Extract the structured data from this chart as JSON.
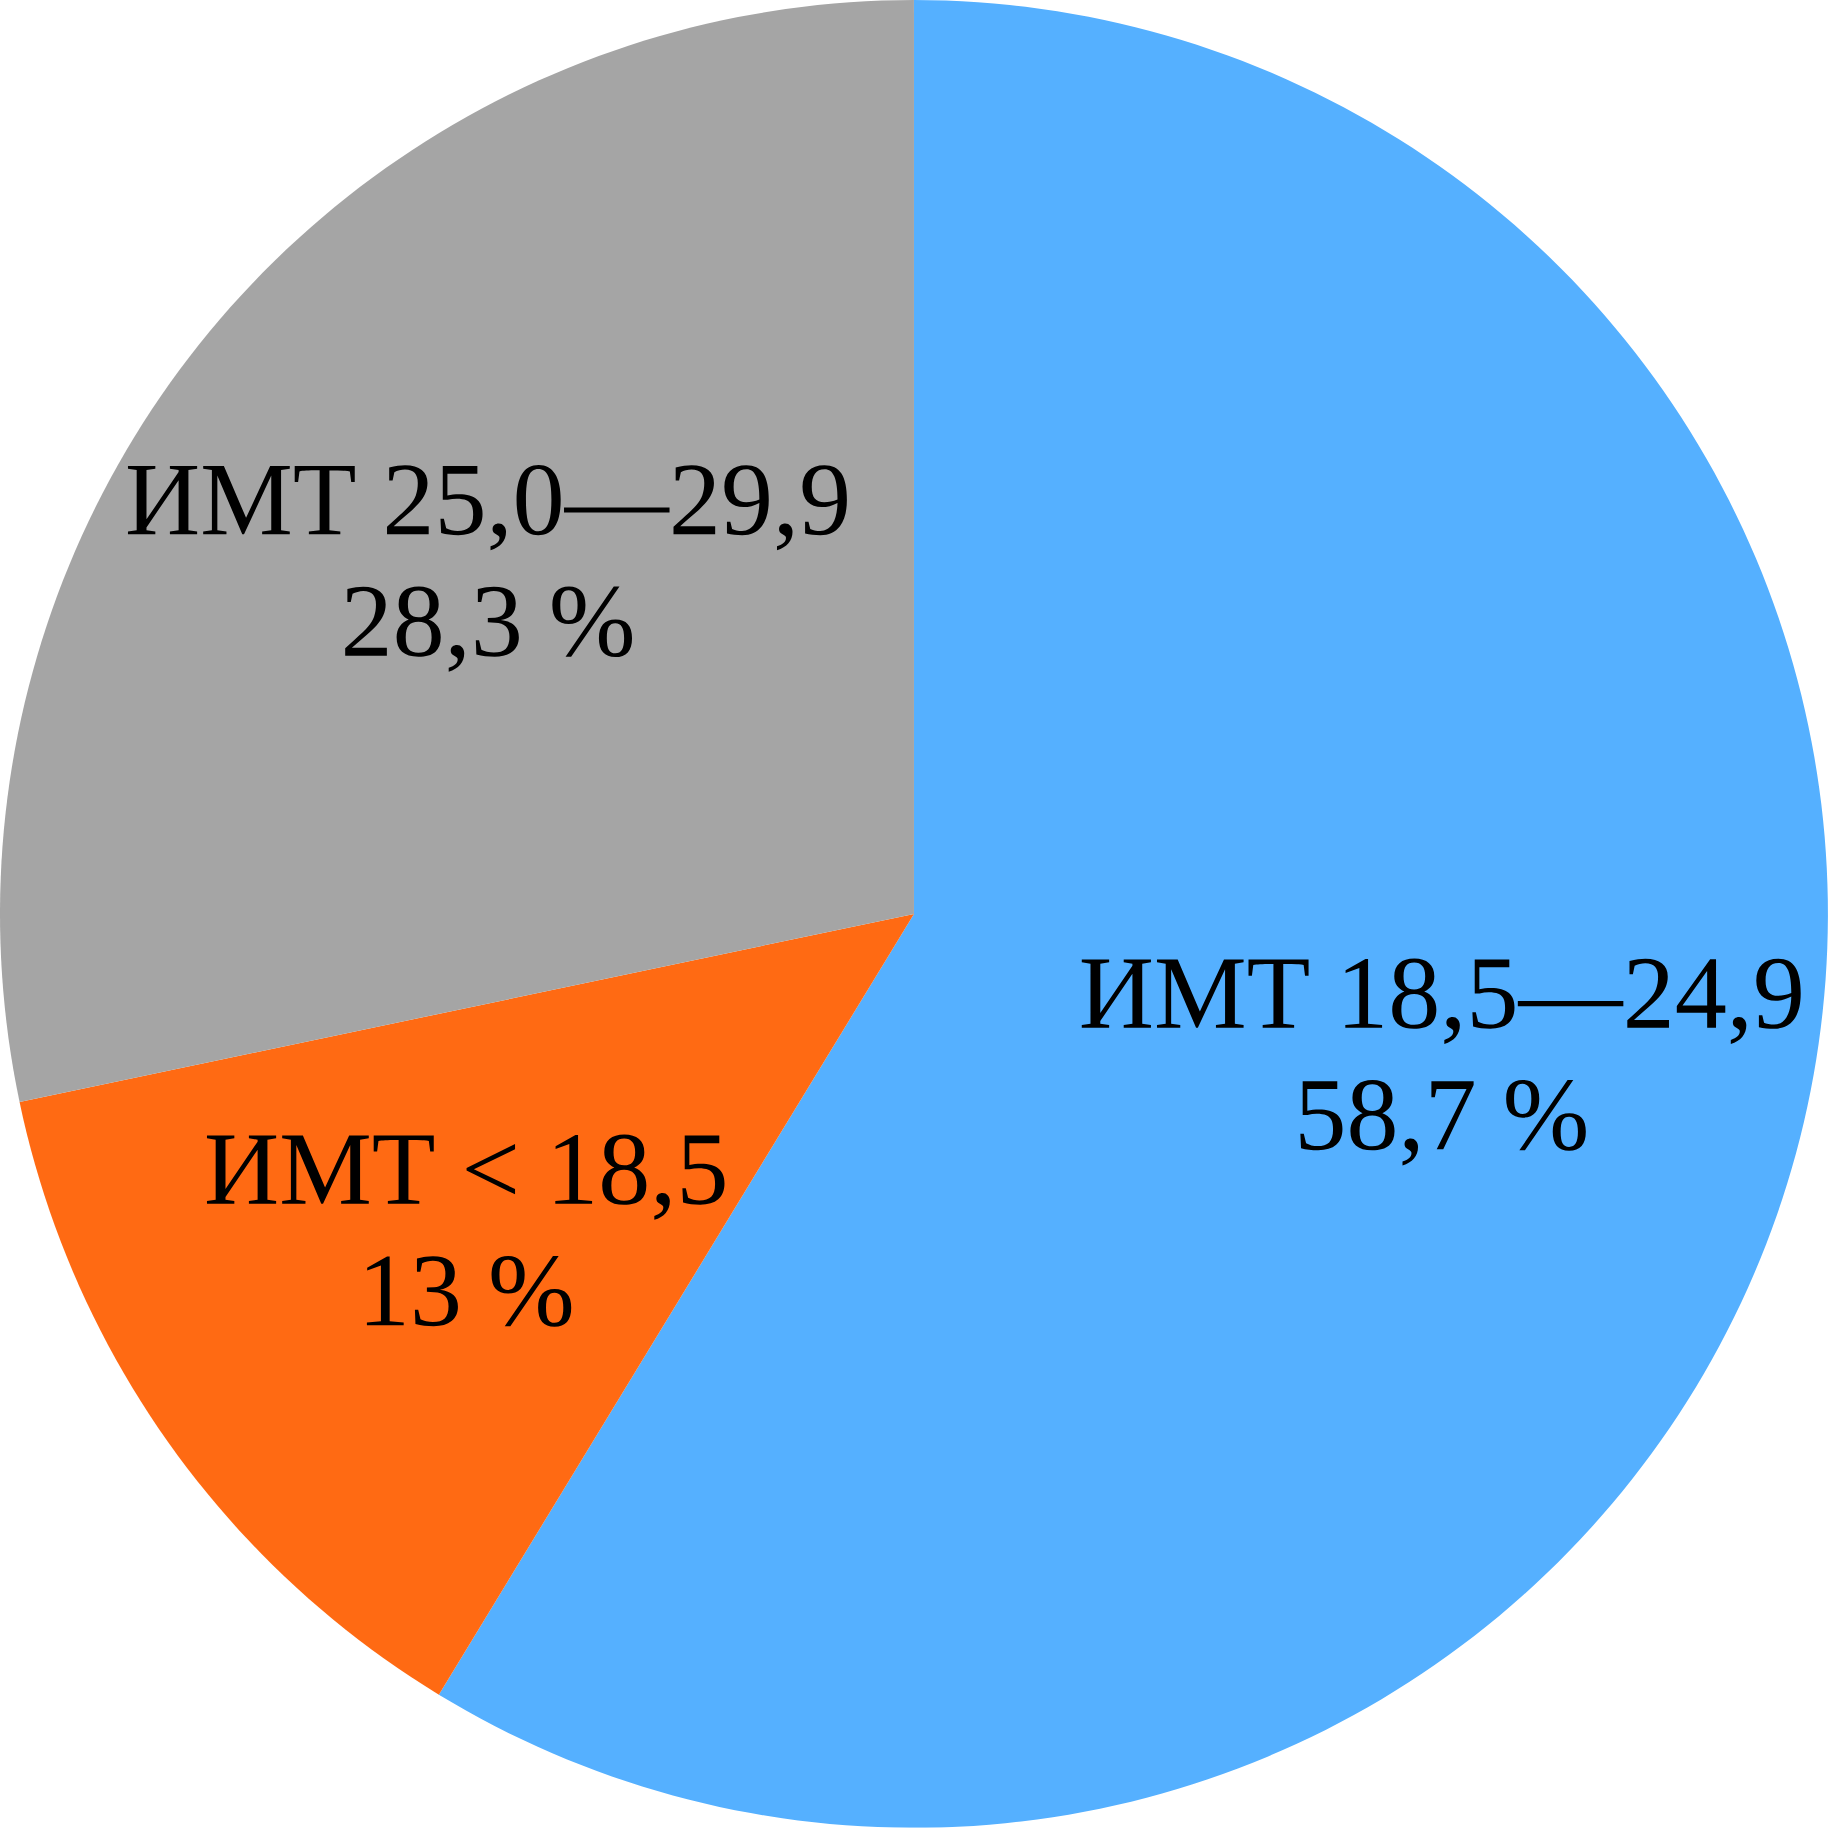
{
  "chart_data": {
    "type": "pie",
    "categories": [
      "ИМТ 18,5—24,9",
      "ИМТ < 18,5",
      "ИМТ 25,0—29,9"
    ],
    "values": [
      58.7,
      13,
      28.3
    ],
    "colors": [
      "#55b0ff",
      "#ff6a13",
      "#a5a5a5"
    ],
    "value_labels": [
      "58,7 %",
      "13 %",
      "28,3 %"
    ]
  }
}
